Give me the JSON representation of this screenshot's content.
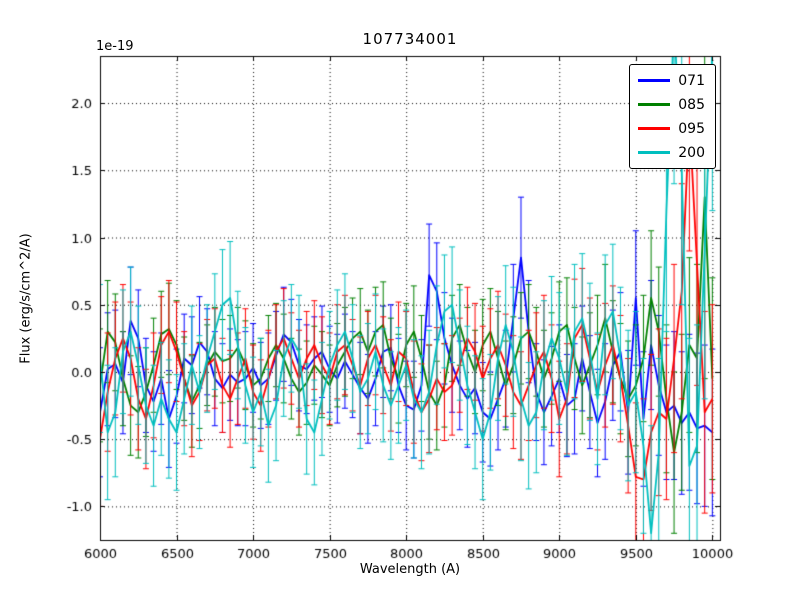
{
  "chart_data": {
    "type": "line",
    "title": "107734001",
    "xlabel": "Wavelength (A)",
    "ylabel": "Flux (erg/s/cm^2/A)",
    "offset_text": "1e-19",
    "grid": true,
    "legend_position": "upper right",
    "xlim": [
      6000,
      10050
    ],
    "ylim": [
      -1.25,
      2.35
    ],
    "xticks": [
      6000,
      6500,
      7000,
      7500,
      8000,
      8500,
      9000,
      9500,
      10000
    ],
    "yticks": [
      -1.0,
      -0.5,
      0.0,
      0.5,
      1.0,
      1.5,
      2.0
    ],
    "x": [
      6000,
      6050,
      6100,
      6150,
      6200,
      6250,
      6300,
      6350,
      6400,
      6450,
      6500,
      6550,
      6600,
      6650,
      6700,
      6750,
      6800,
      6850,
      6900,
      6950,
      7000,
      7050,
      7100,
      7150,
      7200,
      7250,
      7300,
      7350,
      7400,
      7450,
      7500,
      7550,
      7600,
      7650,
      7700,
      7750,
      7800,
      7850,
      7900,
      7950,
      8000,
      8050,
      8100,
      8150,
      8200,
      8250,
      8300,
      8350,
      8400,
      8450,
      8500,
      8550,
      8600,
      8650,
      8700,
      8750,
      8800,
      8850,
      8900,
      8950,
      9000,
      9050,
      9100,
      9150,
      9200,
      9250,
      9300,
      9350,
      9400,
      9450,
      9500,
      9550,
      9600,
      9650,
      9700,
      9750,
      9800,
      9850,
      9900,
      9950,
      10000
    ],
    "series": [
      {
        "name": "071",
        "color": "#0000ff",
        "values": [
          -0.3,
          0.02,
          0.06,
          -0.08,
          0.38,
          0.25,
          -0.1,
          -0.22,
          -0.05,
          -0.35,
          -0.18,
          0.1,
          0.05,
          0.22,
          0.15,
          -0.05,
          -0.12,
          -0.02,
          -0.08,
          -0.05,
          0.03,
          -0.1,
          -0.05,
          0.12,
          0.28,
          0.22,
          0.05,
          0.02,
          0.1,
          0.15,
          0.02,
          -0.05,
          0.08,
          -0.02,
          -0.12,
          -0.2,
          -0.05,
          0.15,
          0.18,
          -0.1,
          -0.25,
          -0.28,
          -0.1,
          0.72,
          0.6,
          0.25,
          0.05,
          -0.1,
          -0.2,
          -0.12,
          -0.3,
          -0.35,
          -0.2,
          -0.05,
          0.4,
          0.85,
          0.3,
          -0.15,
          -0.3,
          -0.18,
          -0.05,
          -0.25,
          -0.2,
          0.1,
          -0.15,
          -0.38,
          -0.22,
          0.05,
          0.15,
          -0.3,
          0.55,
          -0.35,
          0.2,
          -0.1,
          -0.3,
          -0.25,
          -0.38,
          -0.3,
          -0.42,
          -0.4,
          -0.45
        ],
        "errors": [
          0.48,
          0.42,
          0.4,
          0.38,
          0.4,
          0.36,
          0.35,
          0.37,
          0.34,
          0.36,
          0.35,
          0.33,
          0.36,
          0.34,
          0.32,
          0.35,
          0.33,
          0.34,
          0.32,
          0.35,
          0.33,
          0.32,
          0.34,
          0.33,
          0.35,
          0.32,
          0.34,
          0.33,
          0.31,
          0.34,
          0.32,
          0.33,
          0.35,
          0.32,
          0.34,
          0.33,
          0.35,
          0.34,
          0.32,
          0.35,
          0.33,
          0.36,
          0.34,
          0.38,
          0.36,
          0.34,
          0.35,
          0.33,
          0.36,
          0.34,
          0.37,
          0.35,
          0.38,
          0.36,
          0.4,
          0.45,
          0.38,
          0.36,
          0.39,
          0.37,
          0.4,
          0.38,
          0.41,
          0.39,
          0.42,
          0.4,
          0.43,
          0.41,
          0.44,
          0.46,
          0.5,
          0.5,
          0.48,
          0.52,
          0.5,
          0.55,
          0.53,
          0.58,
          0.56,
          0.6,
          0.62
        ]
      },
      {
        "name": "085",
        "color": "#008000",
        "values": [
          -0.1,
          0.3,
          0.22,
          -0.05,
          -0.25,
          -0.3,
          -0.15,
          0.05,
          0.28,
          0.32,
          0.2,
          -0.05,
          -0.22,
          -0.1,
          0.05,
          0.15,
          0.08,
          0.1,
          0.18,
          0.05,
          -0.1,
          -0.05,
          0.1,
          0.2,
          0.1,
          -0.05,
          -0.15,
          -0.08,
          0.05,
          -0.02,
          -0.1,
          0.05,
          0.15,
          0.25,
          0.3,
          0.15,
          0.3,
          0.35,
          0.1,
          -0.05,
          0.2,
          0.3,
          0.1,
          -0.15,
          -0.25,
          -0.1,
          0.25,
          0.35,
          0.15,
          0.0,
          0.2,
          0.3,
          0.1,
          -0.1,
          0.05,
          0.25,
          0.3,
          0.15,
          -0.05,
          0.1,
          0.3,
          0.35,
          0.1,
          -0.1,
          0.05,
          0.2,
          0.4,
          0.15,
          -0.05,
          -0.2,
          -0.1,
          0.1,
          0.55,
          0.3,
          -0.2,
          -0.6,
          -0.3,
          0.2,
          0.1,
          1.3,
          -0.05
        ],
        "errors": [
          0.42,
          0.38,
          0.36,
          0.35,
          0.37,
          0.34,
          0.33,
          0.35,
          0.32,
          0.34,
          0.33,
          0.31,
          0.34,
          0.32,
          0.3,
          0.33,
          0.31,
          0.32,
          0.3,
          0.33,
          0.31,
          0.3,
          0.32,
          0.31,
          0.33,
          0.3,
          0.32,
          0.31,
          0.29,
          0.32,
          0.3,
          0.31,
          0.33,
          0.3,
          0.32,
          0.31,
          0.33,
          0.32,
          0.3,
          0.33,
          0.31,
          0.34,
          0.32,
          0.35,
          0.33,
          0.31,
          0.32,
          0.3,
          0.33,
          0.31,
          0.34,
          0.32,
          0.35,
          0.33,
          0.36,
          0.34,
          0.35,
          0.33,
          0.36,
          0.34,
          0.37,
          0.35,
          0.38,
          0.36,
          0.39,
          0.37,
          0.4,
          0.38,
          0.41,
          0.43,
          0.45,
          0.47,
          0.5,
          0.48,
          0.55,
          0.6,
          0.58,
          0.65,
          0.7,
          1.35,
          0.75
        ]
      },
      {
        "name": "095",
        "color": "#ff0000",
        "values": [
          -0.5,
          -0.15,
          0.1,
          0.25,
          0.1,
          -0.2,
          -0.35,
          -0.1,
          0.2,
          0.3,
          0.15,
          -0.05,
          -0.25,
          -0.15,
          0.05,
          0.1,
          -0.1,
          -0.2,
          -0.05,
          0.1,
          -0.15,
          -0.25,
          -0.05,
          0.15,
          0.25,
          0.1,
          -0.05,
          0.1,
          0.2,
          0.05,
          -0.05,
          0.15,
          0.2,
          0.05,
          -0.1,
          0.1,
          0.2,
          0.05,
          -0.1,
          0.15,
          0.1,
          -0.15,
          -0.3,
          -0.2,
          -0.05,
          -0.15,
          -0.1,
          0.05,
          0.25,
          0.15,
          -0.05,
          0.1,
          0.2,
          0.05,
          -0.15,
          -0.25,
          -0.1,
          0.05,
          0.15,
          -0.05,
          -0.35,
          -0.2,
          0.25,
          0.35,
          0.1,
          -0.15,
          0.05,
          0.2,
          -0.05,
          -0.4,
          -0.78,
          -0.8,
          -0.45,
          -0.3,
          -0.35,
          0.1,
          0.6,
          1.9,
          0.8,
          -0.3,
          -0.2
        ],
        "errors": [
          0.5,
          0.44,
          0.42,
          0.4,
          0.42,
          0.38,
          0.37,
          0.39,
          0.36,
          0.38,
          0.37,
          0.35,
          0.38,
          0.36,
          0.34,
          0.37,
          0.35,
          0.36,
          0.34,
          0.37,
          0.35,
          0.34,
          0.36,
          0.35,
          0.37,
          0.34,
          0.36,
          0.35,
          0.33,
          0.36,
          0.34,
          0.35,
          0.37,
          0.34,
          0.36,
          0.35,
          0.37,
          0.36,
          0.34,
          0.37,
          0.35,
          0.38,
          0.36,
          0.4,
          0.38,
          0.36,
          0.37,
          0.35,
          0.38,
          0.36,
          0.39,
          0.37,
          0.4,
          0.38,
          0.42,
          0.4,
          0.41,
          0.39,
          0.42,
          0.4,
          0.43,
          0.41,
          0.44,
          0.42,
          0.45,
          0.43,
          0.46,
          0.44,
          0.47,
          0.5,
          0.55,
          0.6,
          0.58,
          0.62,
          0.6,
          0.7,
          0.8,
          1.0,
          0.9,
          0.75,
          0.7
        ]
      },
      {
        "name": "200",
        "color": "#00bfbf",
        "values": [
          0.1,
          -0.45,
          -0.3,
          0.15,
          0.3,
          0.05,
          -0.25,
          -0.4,
          -0.2,
          -0.35,
          -0.45,
          -0.2,
          0.05,
          -0.15,
          0.1,
          0.3,
          0.5,
          0.55,
          0.2,
          -0.1,
          -0.3,
          -0.15,
          -0.4,
          -0.25,
          0.1,
          0.25,
          0.15,
          -0.35,
          -0.45,
          -0.2,
          0.05,
          0.2,
          0.3,
          0.1,
          -0.15,
          -0.05,
          0.15,
          -0.1,
          -0.25,
          -0.1,
          0.05,
          -0.2,
          -0.3,
          -0.15,
          0.2,
          0.45,
          0.5,
          0.2,
          -0.1,
          -0.3,
          -0.5,
          -0.3,
          0.1,
          0.35,
          0.15,
          -0.2,
          -0.4,
          -0.3,
          0.05,
          0.25,
          0.1,
          -0.15,
          0.3,
          0.4,
          0.15,
          -0.2,
          0.35,
          0.45,
          0.1,
          -0.25,
          -0.15,
          -0.55,
          -1.2,
          -0.6,
          1.2,
          2.6,
          1.5,
          -0.7,
          -0.55,
          0.9,
          2.4
        ],
        "errors": [
          0.55,
          0.5,
          0.48,
          0.46,
          0.48,
          0.44,
          0.43,
          0.45,
          0.42,
          0.44,
          0.43,
          0.41,
          0.44,
          0.42,
          0.4,
          0.43,
          0.41,
          0.42,
          0.4,
          0.43,
          0.41,
          0.4,
          0.42,
          0.41,
          0.43,
          0.4,
          0.42,
          0.41,
          0.39,
          0.42,
          0.4,
          0.41,
          0.43,
          0.4,
          0.42,
          0.41,
          0.43,
          0.42,
          0.4,
          0.43,
          0.41,
          0.44,
          0.42,
          0.46,
          0.44,
          0.42,
          0.43,
          0.41,
          0.44,
          0.42,
          0.45,
          0.43,
          0.46,
          0.44,
          0.48,
          0.46,
          0.47,
          0.45,
          0.48,
          0.46,
          0.49,
          0.47,
          0.5,
          0.48,
          0.51,
          0.49,
          0.52,
          0.5,
          0.53,
          0.56,
          0.6,
          0.65,
          0.8,
          0.7,
          0.9,
          1.2,
          1.0,
          0.95,
          0.9,
          1.1,
          1.2
        ]
      }
    ]
  }
}
